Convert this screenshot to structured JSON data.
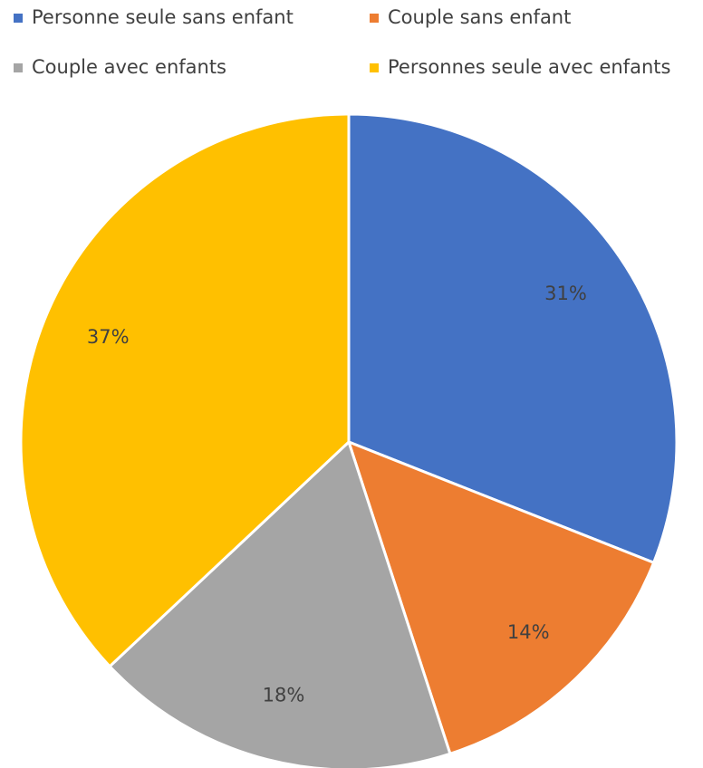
{
  "chart_data": {
    "type": "pie",
    "categories": [
      "Personne seule sans enfant",
      "Couple sans enfant",
      "Couple avec enfants",
      "Personnes seule avec enfants"
    ],
    "values": [
      31,
      14,
      18,
      37
    ],
    "value_labels": [
      "31%",
      "14%",
      "18%",
      "37%"
    ],
    "colors": [
      "#4472c4",
      "#ed7d31",
      "#a5a5a5",
      "#ffc000"
    ],
    "legend": "top"
  }
}
